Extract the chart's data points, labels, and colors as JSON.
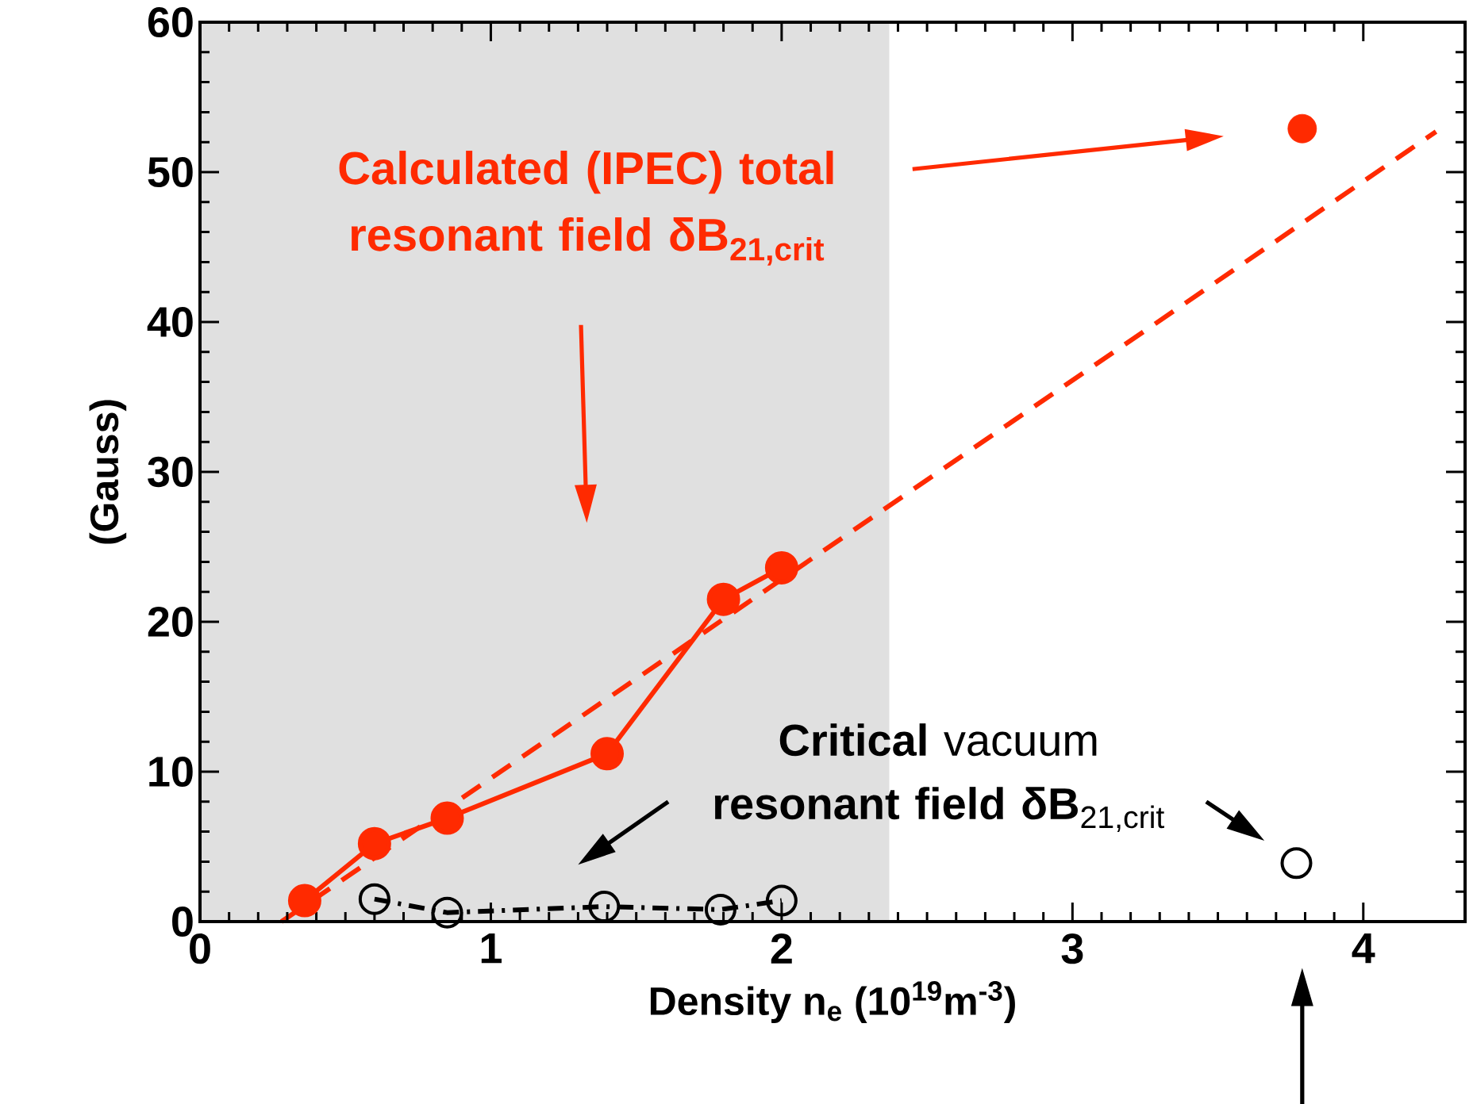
{
  "chart_data": {
    "type": "line",
    "xlabel": "Density n$_{e}$ (10$^{19}$m$^{-3}$)",
    "ylabel": "(Gauss)",
    "xlim": [
      0,
      4.35
    ],
    "ylim": [
      0,
      60
    ],
    "xticks": [
      0,
      1,
      2,
      3,
      4
    ],
    "yticks": [
      0,
      10,
      20,
      30,
      40,
      50,
      60
    ],
    "grid": false,
    "legend": false,
    "bands": [
      {
        "axis": "x",
        "from": 0,
        "to": 2.37,
        "color": "#e0e0e0"
      }
    ],
    "annotations": [
      "Calculated (IPEC) total resonant field δB$_{21,crit}$",
      "**Critical** vacuum **resonant field δB**$_{21,crit}$"
    ],
    "series": [
      {
        "color": "#ff2a00",
        "marker": "circle",
        "line_style": "solid",
        "x": [
          0.36,
          0.6,
          0.85,
          1.4,
          1.8,
          2.0
        ],
        "values": [
          1.4,
          5.2,
          6.9,
          11.2,
          21.5,
          23.6
        ]
      },
      {
        "type": "scatter",
        "color": "#ff2a00",
        "marker": "circle",
        "x": [
          3.79
        ],
        "values": [
          52.9
        ]
      },
      {
        "color": "#ff2a00",
        "marker": "none",
        "line_style": "dashed",
        "x": [
          0.28,
          4.25
        ],
        "values": [
          0,
          52.7
        ]
      },
      {
        "color": "#000000",
        "marker": "open circle",
        "line_style": "dashdot",
        "x": [
          0.6,
          0.85,
          1.39,
          1.79,
          2.0
        ],
        "values": [
          1.5,
          0.6,
          1.0,
          0.8,
          1.4
        ]
      },
      {
        "type": "scatter",
        "color": "#000000",
        "marker": "open circle",
        "x": [
          3.77
        ],
        "values": [
          3.9
        ]
      }
    ]
  }
}
